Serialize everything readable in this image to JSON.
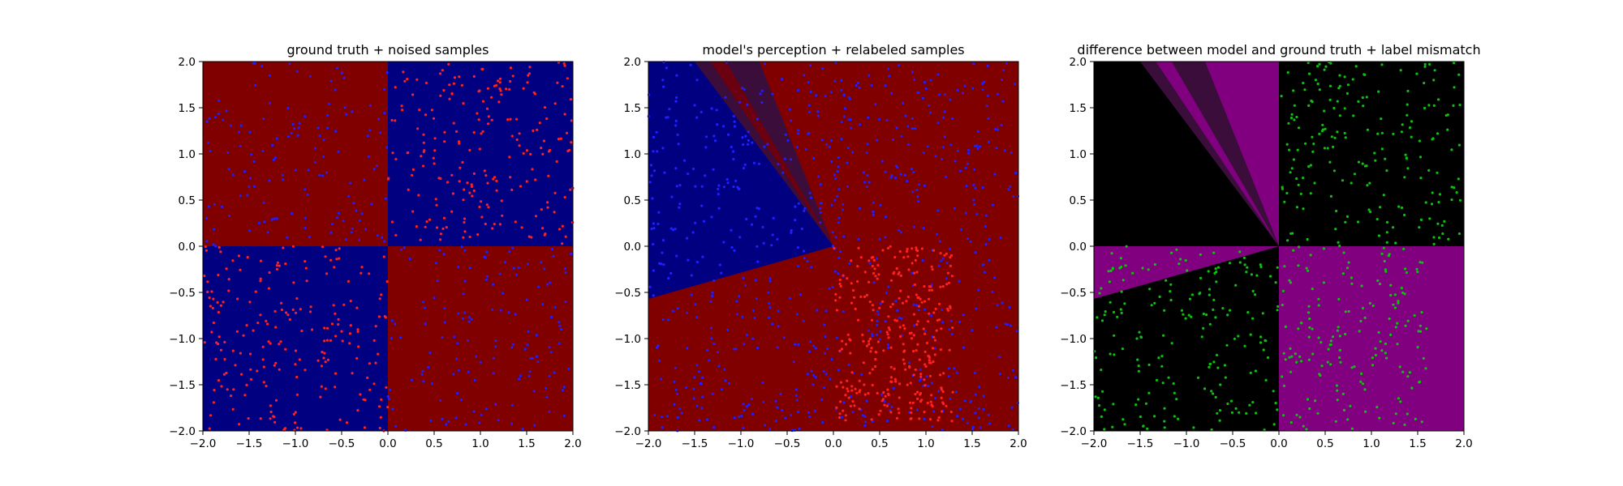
{
  "chart_data": [
    {
      "type": "scatter",
      "title": "ground truth + noised samples",
      "xlim": [
        -2,
        2
      ],
      "ylim": [
        -2,
        2
      ],
      "xticks": [
        "−2.0",
        "−1.5",
        "−1.0",
        "−0.5",
        "0.0",
        "0.5",
        "1.0",
        "1.5",
        "2.0"
      ],
      "yticks": [
        "−2.0",
        "−1.5",
        "−1.0",
        "−0.5",
        "0.0",
        "0.5",
        "1.0",
        "1.5",
        "2.0"
      ],
      "xtick_values": [
        -2,
        -1.5,
        -1,
        -0.5,
        0,
        0.5,
        1,
        1.5,
        2
      ],
      "ytick_values": [
        -2,
        -1.5,
        -1,
        -0.5,
        0,
        0.5,
        1,
        1.5,
        2
      ],
      "grid": false,
      "background_regions": [
        {
          "description": "x<0,y>0",
          "color": "#800000",
          "polygon": [
            [
              -2,
              0
            ],
            [
              0,
              0
            ],
            [
              0,
              2
            ],
            [
              -2,
              2
            ]
          ]
        },
        {
          "description": "x>0,y>0",
          "color": "#000080",
          "polygon": [
            [
              0,
              0
            ],
            [
              2,
              0
            ],
            [
              2,
              2
            ],
            [
              0,
              2
            ]
          ]
        },
        {
          "description": "x<0,y<0",
          "color": "#000080",
          "polygon": [
            [
              -2,
              -2
            ],
            [
              0,
              -2
            ],
            [
              0,
              0
            ],
            [
              -2,
              0
            ]
          ]
        },
        {
          "description": "x>0,y<0",
          "color": "#800000",
          "polygon": [
            [
              0,
              -2
            ],
            [
              2,
              -2
            ],
            [
              2,
              0
            ],
            [
              0,
              0
            ]
          ]
        }
      ],
      "scatter_series": [
        {
          "color": "#1f1fff",
          "regions": [
            [
              -2,
              0,
              0,
              2,
              135
            ],
            [
              0,
              2,
              -2,
              0,
              140
            ]
          ]
        },
        {
          "color": "#ff2020",
          "regions": [
            [
              0,
              2,
              0,
              2,
              220
            ],
            [
              -2,
              0,
              -2,
              0,
              215
            ]
          ]
        }
      ],
      "seed": 11
    },
    {
      "type": "scatter",
      "title": "model's perception + relabeled samples",
      "xlim": [
        -2,
        2
      ],
      "ylim": [
        -2,
        2
      ],
      "xticks": [
        "−2.0",
        "−1.5",
        "−1.0",
        "−0.5",
        "0.0",
        "0.5",
        "1.0",
        "1.5",
        "2.0"
      ],
      "yticks": [
        "−2.0",
        "−1.5",
        "−1.0",
        "−0.5",
        "0.0",
        "0.5",
        "1.0",
        "1.5",
        "2.0"
      ],
      "xtick_values": [
        -2,
        -1.5,
        -1,
        -0.5,
        0,
        0.5,
        1,
        1.5,
        2
      ],
      "ytick_values": [
        -2,
        -1.5,
        -1,
        -0.5,
        0,
        0.5,
        1,
        1.5,
        2
      ],
      "grid": false,
      "background_regions": [
        {
          "description": "red background",
          "color": "#800000",
          "polygon": [
            [
              -2,
              -2
            ],
            [
              2,
              -2
            ],
            [
              2,
              2
            ],
            [
              -2,
              2
            ]
          ]
        },
        {
          "description": "blue wedge",
          "color": "#000080",
          "polygon": [
            [
              0,
              0
            ],
            [
              -2,
              -0.57
            ],
            [
              -2,
              2
            ],
            [
              -1.5,
              2
            ]
          ]
        },
        {
          "description": "dark wedge",
          "color": "#3a0d3a",
          "polygon": [
            [
              0,
              0
            ],
            [
              -1.5,
              2
            ],
            [
              -0.8,
              2
            ]
          ]
        },
        {
          "description": "maroon stripe",
          "color": "#6a0010",
          "polygon": [
            [
              0,
              0
            ],
            [
              -1.33,
              2
            ],
            [
              -1.16,
              2
            ]
          ]
        }
      ],
      "scatter_series": [
        {
          "color": "#1f1fff",
          "regions": [
            [
              -2,
              2,
              -2,
              2,
              700
            ]
          ]
        },
        {
          "color": "#ff2020",
          "regions": [
            [
              0,
              1.3,
              -1.9,
              0,
              300
            ]
          ]
        }
      ],
      "seed": 23
    },
    {
      "type": "scatter",
      "title": "difference between model and ground truth + label mismatch",
      "xlim": [
        -2,
        2
      ],
      "ylim": [
        -2,
        2
      ],
      "xticks": [
        "−2.0",
        "−1.5",
        "−1.0",
        "−0.5",
        "0.0",
        "0.5",
        "1.0",
        "1.5",
        "2.0"
      ],
      "yticks": [
        "−2.0",
        "−1.5",
        "−1.0",
        "−0.5",
        "0.0",
        "0.5",
        "1.0",
        "1.5",
        "2.0"
      ],
      "xtick_values": [
        -2,
        -1.5,
        -1,
        -0.5,
        0,
        0.5,
        1,
        1.5,
        2
      ],
      "ytick_values": [
        -2,
        -1.5,
        -1,
        -0.5,
        0,
        0.5,
        1,
        1.5,
        2
      ],
      "grid": false,
      "background_regions": [
        {
          "description": "black background",
          "color": "#000000",
          "polygon": [
            [
              -2,
              -2
            ],
            [
              2,
              -2
            ],
            [
              2,
              2
            ],
            [
              -2,
              2
            ]
          ]
        },
        {
          "description": "magenta lower-right",
          "color": "#800080",
          "polygon": [
            [
              0,
              -2
            ],
            [
              2,
              -2
            ],
            [
              2,
              0
            ],
            [
              0,
              0
            ]
          ]
        },
        {
          "description": "magenta left wedge",
          "color": "#800080",
          "polygon": [
            [
              0,
              0
            ],
            [
              -2,
              0
            ],
            [
              -2,
              -0.57
            ]
          ]
        },
        {
          "description": "magenta upper wedge",
          "color": "#800080",
          "polygon": [
            [
              0,
              0
            ],
            [
              -0.8,
              2
            ],
            [
              0,
              2
            ]
          ]
        },
        {
          "description": "dark purple wedge",
          "color": "#3a0d3a",
          "polygon": [
            [
              0,
              0
            ],
            [
              -1.5,
              2
            ],
            [
              -0.8,
              2
            ]
          ]
        },
        {
          "description": "magenta stripe",
          "color": "#800080",
          "polygon": [
            [
              0,
              0
            ],
            [
              -1.33,
              2
            ],
            [
              -1.16,
              2
            ]
          ]
        }
      ],
      "scatter_series": [
        {
          "color": "#0fbf0f",
          "regions": [
            [
              0,
              2,
              0,
              2,
              200
            ],
            [
              -2,
              0,
              -2,
              0,
              195
            ],
            [
              0,
              1.6,
              -2,
              0,
              170
            ]
          ]
        }
      ],
      "seed": 37
    }
  ]
}
